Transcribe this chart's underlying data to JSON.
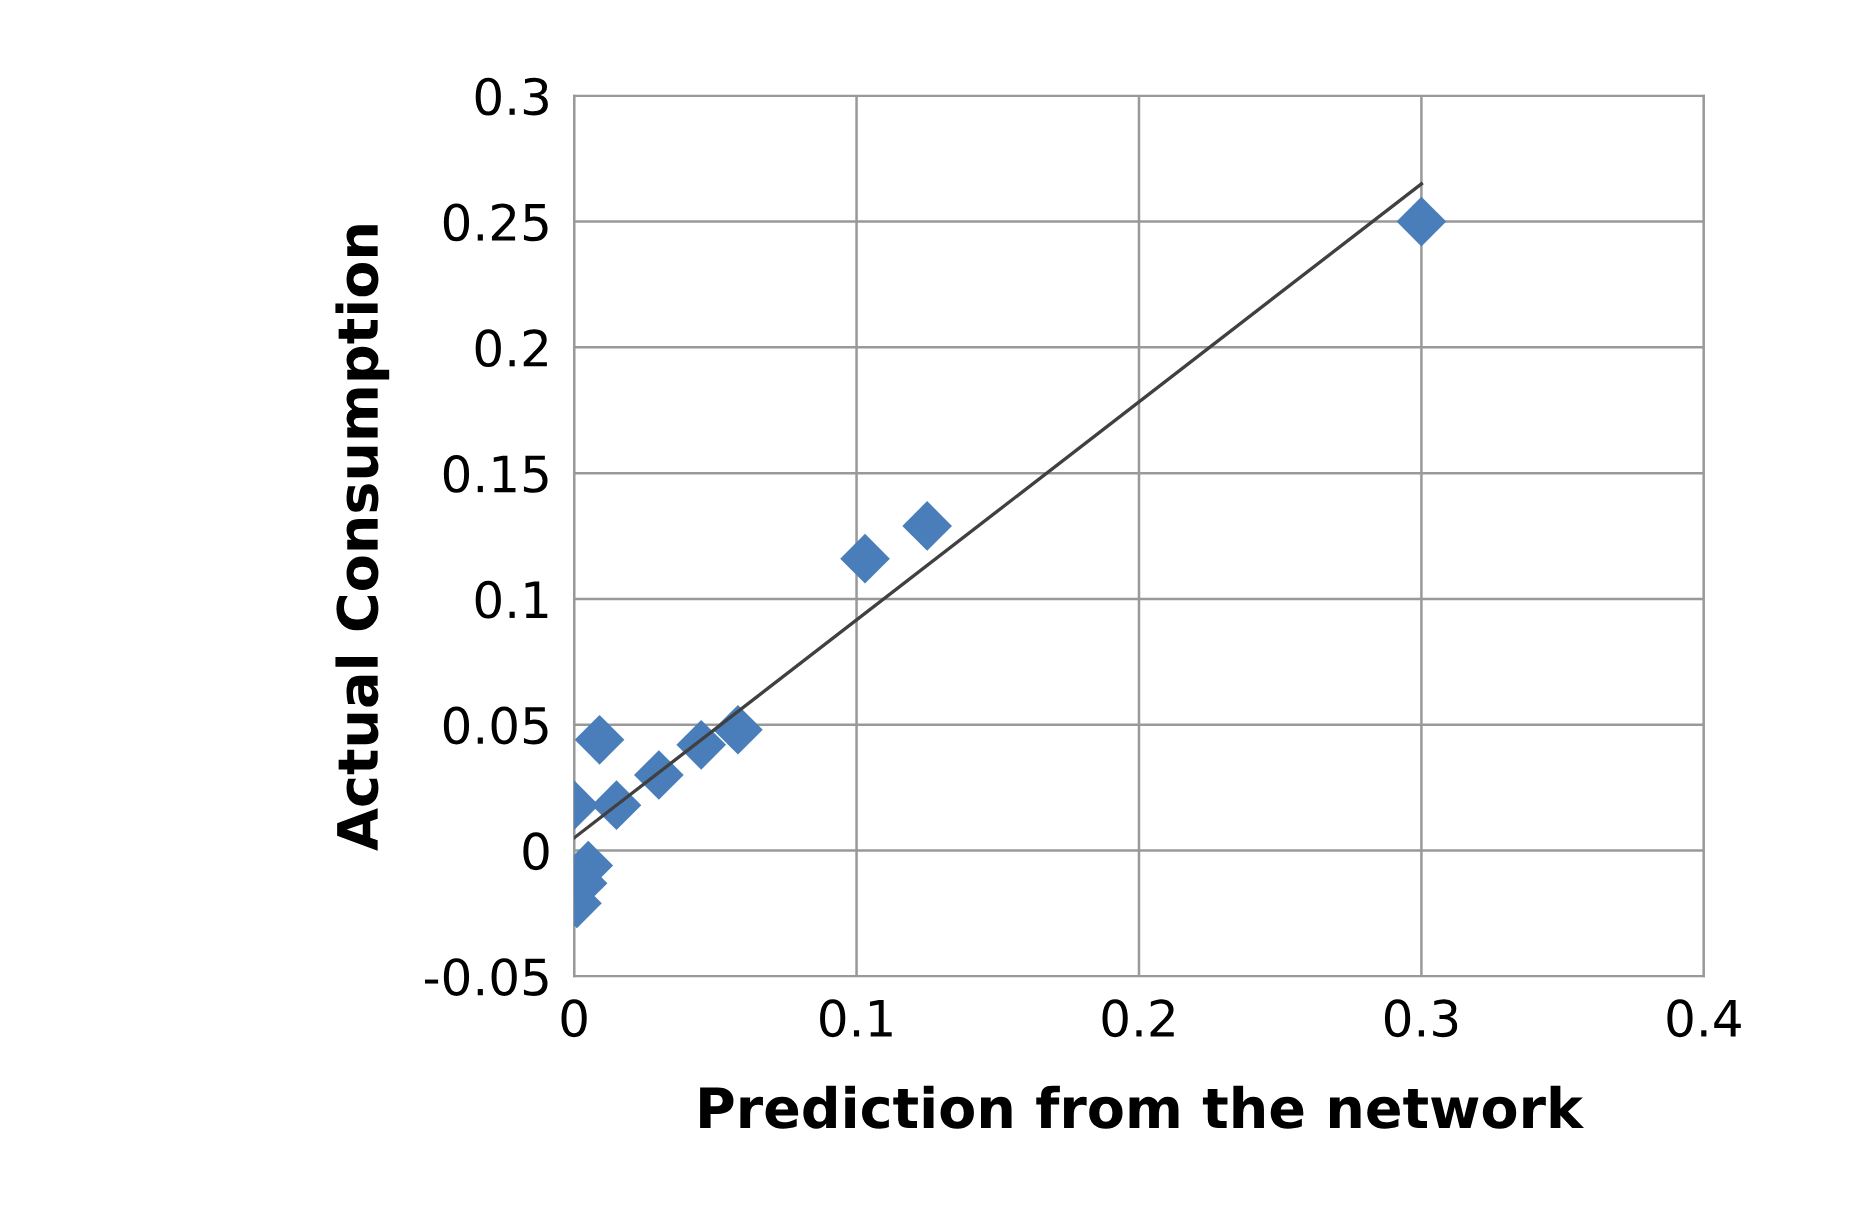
{
  "chart_data": {
    "type": "scatter",
    "xlabel": "Prediction from the network",
    "ylabel": "Actual Consumption",
    "series": [
      {
        "color": "#4a7ebb",
        "marker": "diamond",
        "x": [
          0.3,
          0.103,
          0.125,
          0.009,
          0.0,
          0.005,
          0.003,
          0.001,
          0.015,
          0.03,
          0.045,
          0.058
        ],
        "values": [
          0.25,
          0.116,
          0.129,
          0.044,
          0.018,
          -0.006,
          -0.013,
          -0.021,
          0.018,
          0.03,
          0.042,
          0.048
        ]
      },
      {
        "type": "line",
        "color": "#404040",
        "x": [
          0.0,
          0.3
        ],
        "values": [
          0.005,
          0.265
        ]
      }
    ],
    "xlim": [
      0,
      0.4
    ],
    "xticks": [
      0,
      0.1,
      0.2,
      0.3,
      0.4
    ],
    "ylim": [
      -0.05,
      0.3
    ],
    "yticks": [
      -0.05,
      0,
      0.05,
      0.1,
      0.15,
      0.2,
      0.25,
      0.3
    ],
    "grid": true
  }
}
